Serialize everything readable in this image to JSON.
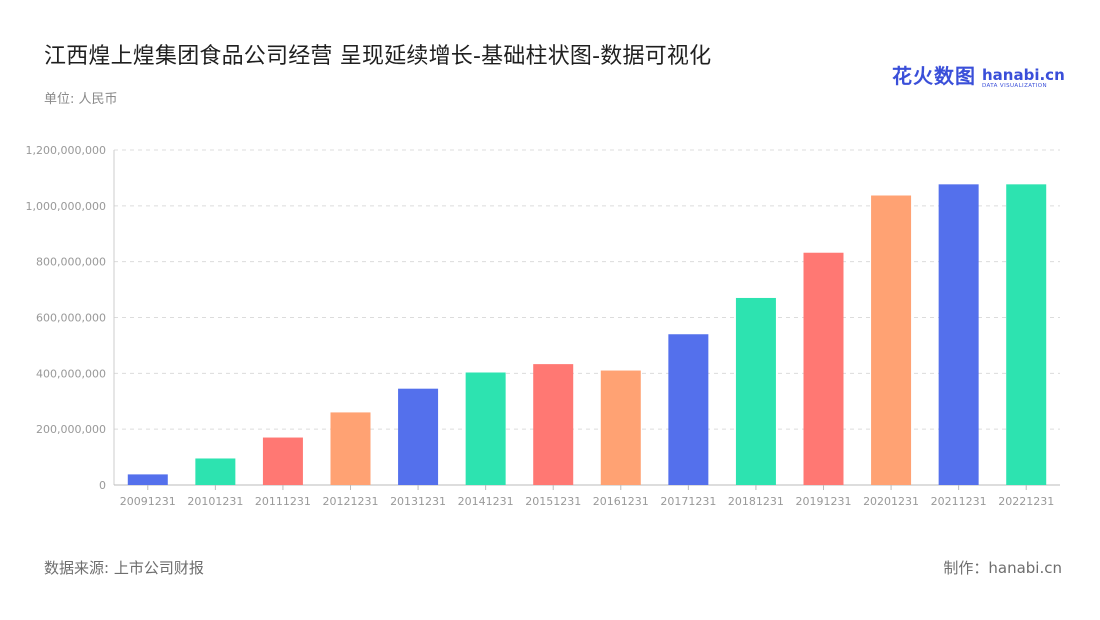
{
  "header": {
    "title": "江西煌上煌集团食品公司经营 呈现延续增长-基础柱状图-数据可视化",
    "unit": "单位: 人民币"
  },
  "logo": {
    "cn": "花火数图",
    "en": "hanabi.cn",
    "sub": "DATA VISUALIZATION"
  },
  "footer": {
    "source": "数据来源: 上市公司财报",
    "maker": "制作：hanabi.cn"
  },
  "chart_data": {
    "type": "bar",
    "title": "江西煌上煌集团食品公司经营 呈现延续增长-基础柱状图-数据可视化",
    "xlabel": "",
    "ylabel": "",
    "categories": [
      "20091231",
      "20101231",
      "20111231",
      "20121231",
      "20131231",
      "20141231",
      "20151231",
      "20161231",
      "20171231",
      "20181231",
      "20191231",
      "20201231",
      "20211231",
      "20221231"
    ],
    "values": [
      38000000,
      95000000,
      170000000,
      260000000,
      345000000,
      403000000,
      433000000,
      410000000,
      540000000,
      670000000,
      832000000,
      1037000000,
      1077000000,
      1077000000
    ],
    "colors": [
      "#5470ec",
      "#2de3b0",
      "#ff7873",
      "#ffa273",
      "#5470ec",
      "#2de3b0",
      "#ff7873",
      "#ffa273",
      "#5470ec",
      "#2de3b0",
      "#ff7873",
      "#ffa273",
      "#5470ec",
      "#2de3b0"
    ],
    "ylim": [
      0,
      1200000000
    ],
    "yticks": [
      0,
      200000000,
      400000000,
      600000000,
      800000000,
      1000000000,
      1200000000
    ],
    "ytick_labels": [
      "0",
      "200,000,000",
      "400,000,000",
      "600,000,000",
      "800,000,000",
      "1,000,000,000",
      "1,200,000,000"
    ],
    "grid": true,
    "legend": "none"
  }
}
